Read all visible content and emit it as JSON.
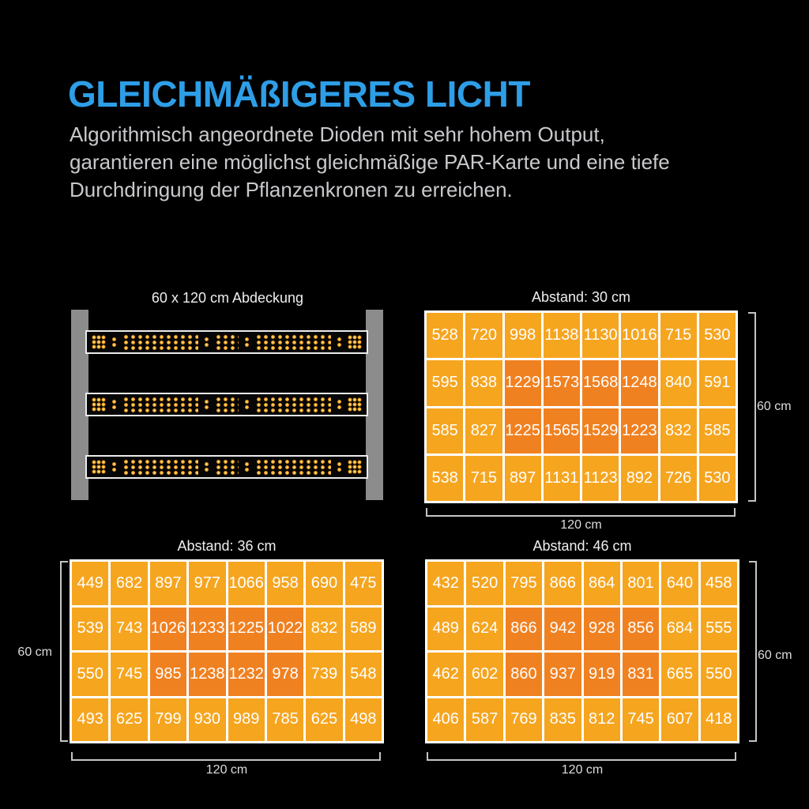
{
  "colors": {
    "background": "#000000",
    "accent_blue": "#2E9EE7",
    "body_text": "#C9C9CD",
    "white_text": "#EFEFEF",
    "dim_label": "#DCDCDC",
    "cell_orange": "#F6A51F",
    "cell_hot_orange": "#F08121",
    "table_grid_white": "#FFFFFF",
    "bracket_gray": "#C4C4C4",
    "post_gray": "#8C8C8C",
    "led_outer": "#F2A01E",
    "led_center": "#FFEFA8"
  },
  "header": {
    "title": "GLEICHMÄßIGERES LICHT",
    "description": "Algorithmisch angeordnete Dioden mit sehr hohem Output, garantieren eine möglichst gleichmäßige PAR-Karte und eine tiefe Durchdringung der Pflanzenkronen zu erreichen."
  },
  "fixture": {
    "title": "60 x 120 cm Abdeckung",
    "bar_count": 3
  },
  "chart_data": [
    {
      "type": "heatmap",
      "title": "Abstand: 30 cm",
      "width_label": "120 cm",
      "height_label": "60 cm",
      "height_label_side": "right",
      "rows": 4,
      "cols": 8,
      "values": [
        [
          528,
          720,
          998,
          1138,
          1130,
          1016,
          715,
          530
        ],
        [
          595,
          838,
          1229,
          1573,
          1568,
          1248,
          840,
          591
        ],
        [
          585,
          827,
          1225,
          1565,
          1529,
          1223,
          832,
          585
        ],
        [
          538,
          715,
          897,
          1131,
          1123,
          892,
          726,
          530
        ]
      ],
      "hot_rows": [
        1,
        2
      ],
      "hot_cols": [
        2,
        3,
        4,
        5
      ]
    },
    {
      "type": "heatmap",
      "title": "Abstand: 36 cm",
      "width_label": "120 cm",
      "height_label": "60 cm",
      "height_label_side": "left",
      "rows": 4,
      "cols": 8,
      "values": [
        [
          449,
          682,
          897,
          977,
          1066,
          958,
          690,
          475
        ],
        [
          539,
          743,
          1026,
          1233,
          1225,
          1022,
          832,
          589
        ],
        [
          550,
          745,
          985,
          1238,
          1232,
          978,
          739,
          548
        ],
        [
          493,
          625,
          799,
          930,
          989,
          785,
          625,
          498
        ]
      ],
      "hot_rows": [
        1,
        2
      ],
      "hot_cols": [
        2,
        3,
        4,
        5
      ]
    },
    {
      "type": "heatmap",
      "title": "Abstand: 46 cm",
      "width_label": "120 cm",
      "height_label": "60 cm",
      "height_label_side": "right",
      "rows": 4,
      "cols": 8,
      "values": [
        [
          432,
          520,
          795,
          866,
          864,
          801,
          640,
          458
        ],
        [
          489,
          624,
          866,
          942,
          928,
          856,
          684,
          555
        ],
        [
          462,
          602,
          860,
          937,
          919,
          831,
          665,
          550
        ],
        [
          406,
          587,
          769,
          835,
          812,
          745,
          607,
          418
        ]
      ],
      "hot_rows": [
        1,
        2
      ],
      "hot_cols": [
        2,
        3,
        4,
        5
      ]
    }
  ]
}
